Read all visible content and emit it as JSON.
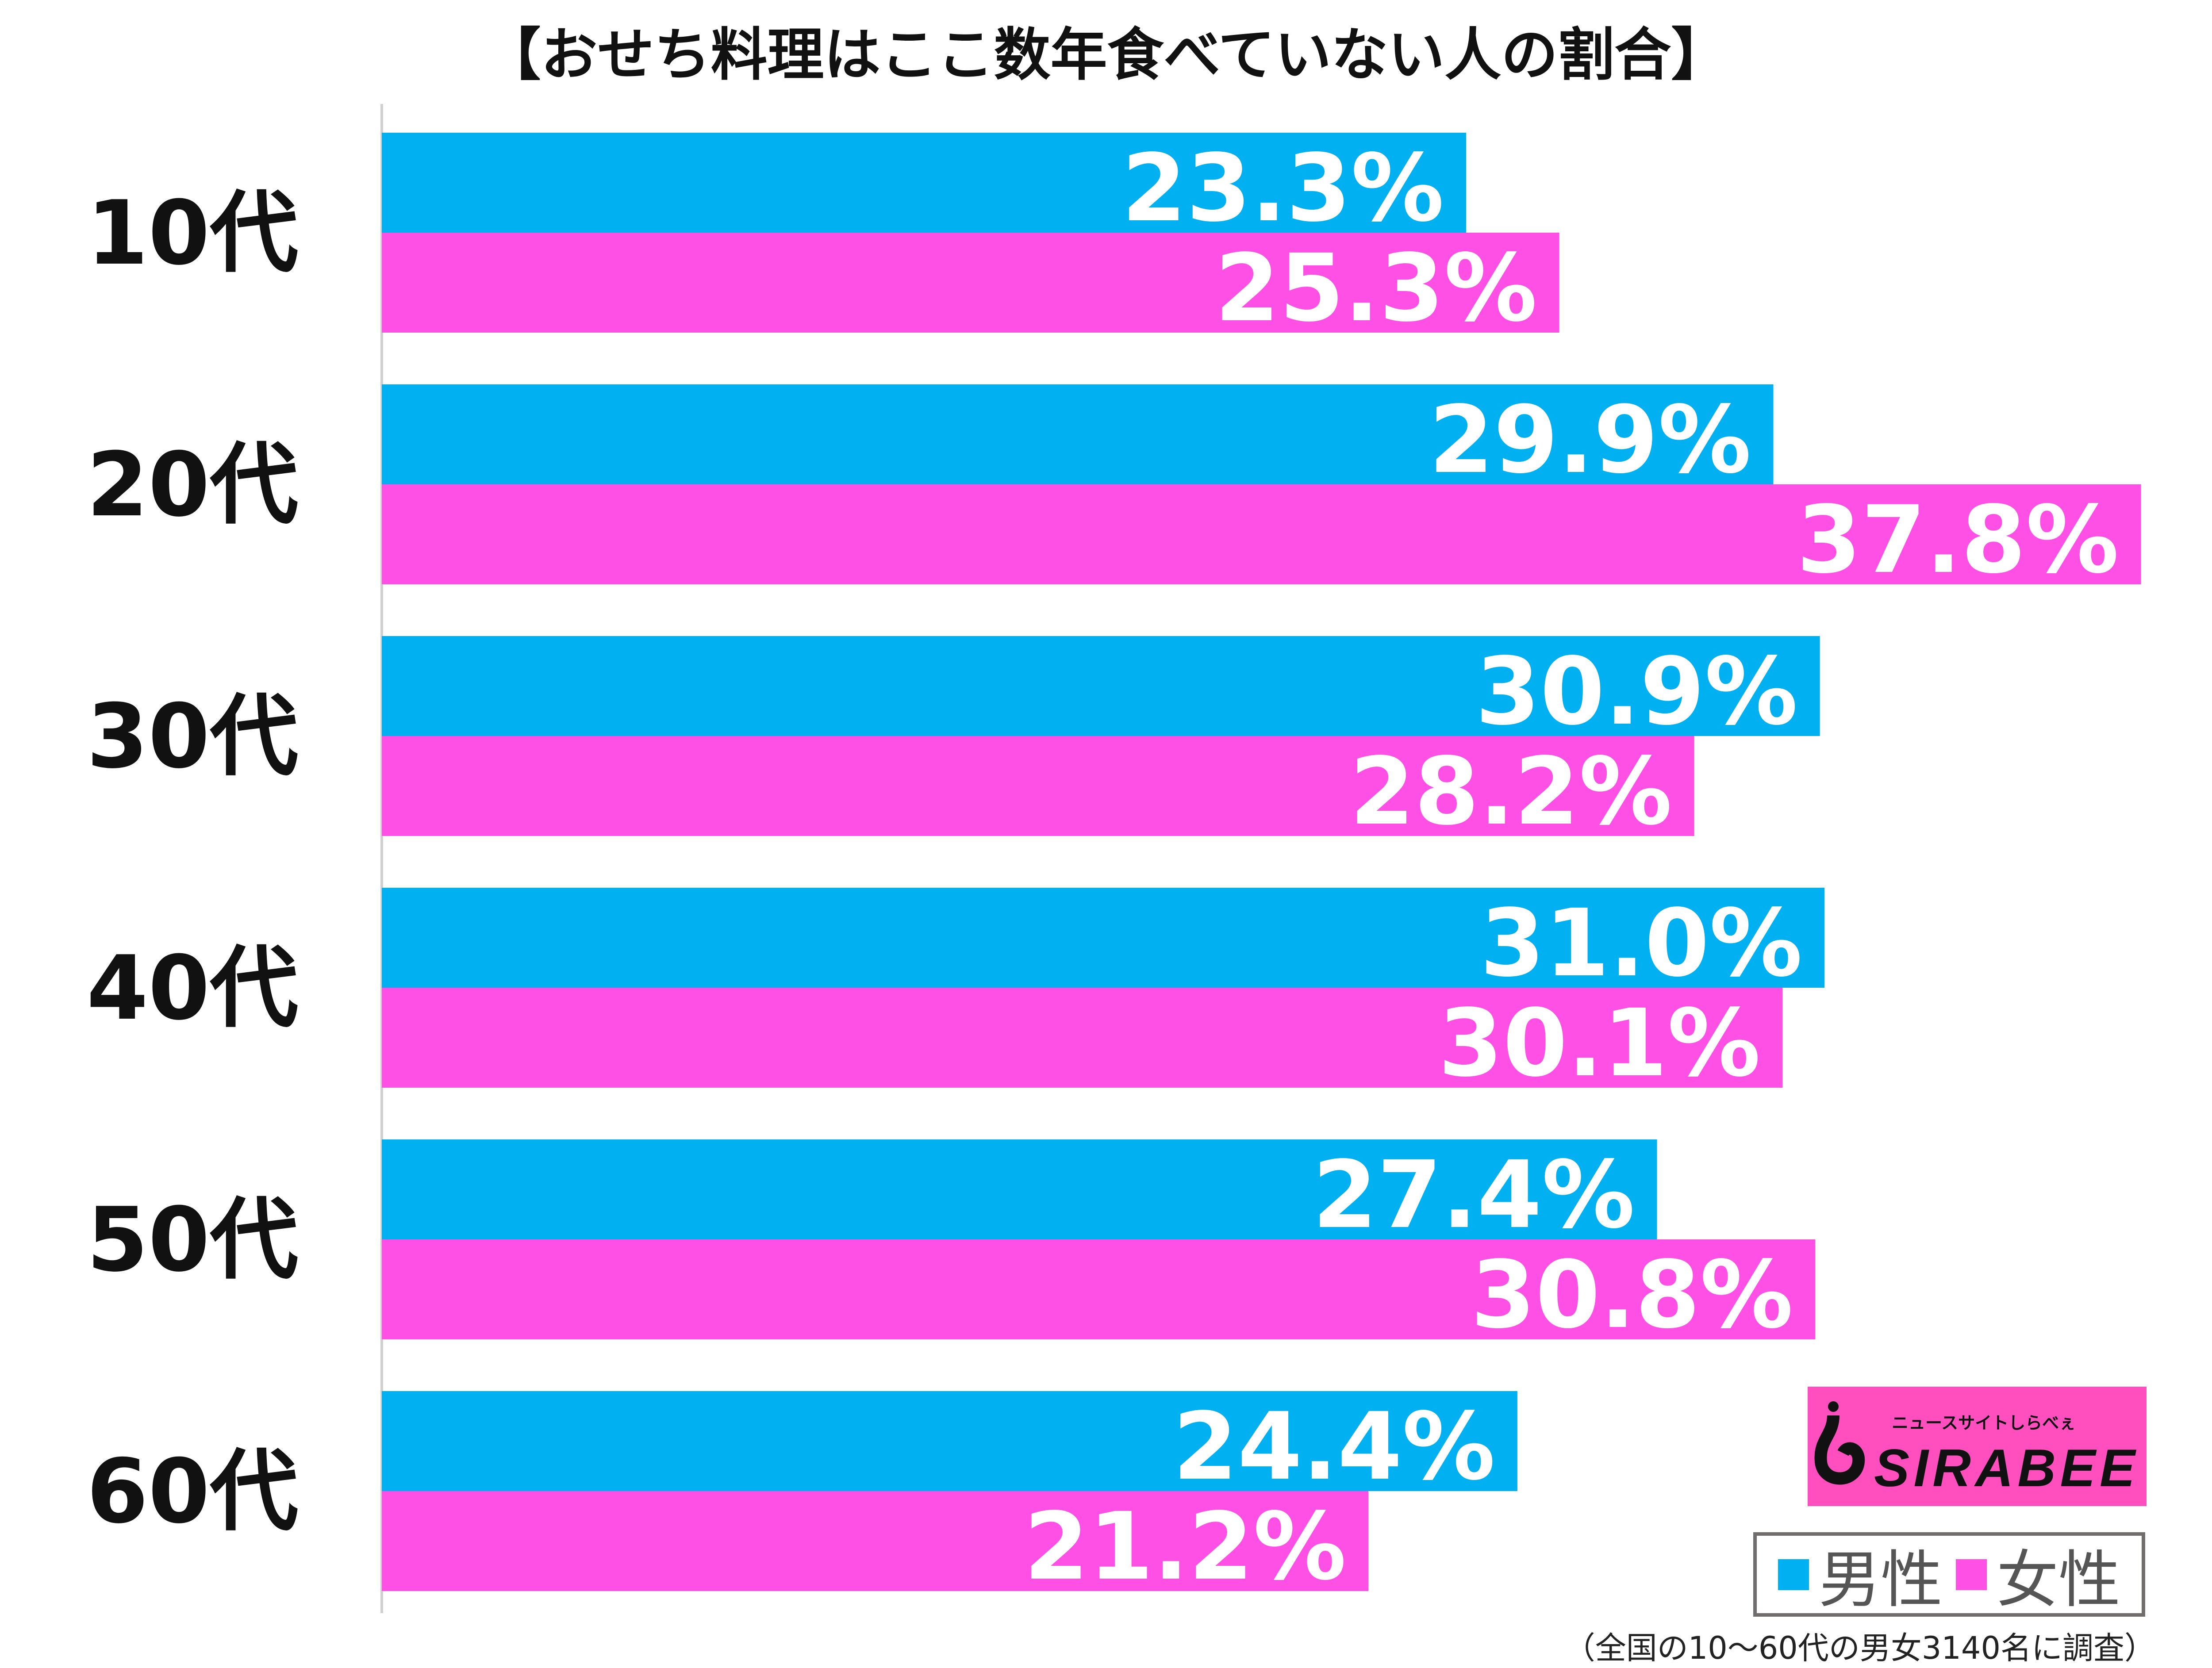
{
  "chart_data": {
    "type": "bar",
    "orientation": "horizontal",
    "title": "【おせち料理はここ数年食べていない人の割合】",
    "categories": [
      "10代",
      "20代",
      "30代",
      "40代",
      "50代",
      "60代"
    ],
    "series": [
      {
        "name": "男性",
        "color": "#00b0f0",
        "values": [
          23.3,
          29.9,
          30.9,
          31.0,
          27.4,
          24.4
        ]
      },
      {
        "name": "女性",
        "color": "#ff50e6",
        "values": [
          25.3,
          37.8,
          28.2,
          30.1,
          30.8,
          21.2
        ]
      }
    ],
    "value_unit": "%",
    "xlim": [
      0,
      38
    ],
    "grid": false,
    "legend_position": "bottom-right"
  },
  "footnote": "（全国の10〜60代の男女3140名に調査）",
  "logo": {
    "text": "SIRABEE",
    "subtext": "ニュースサイトしらべぇ"
  }
}
